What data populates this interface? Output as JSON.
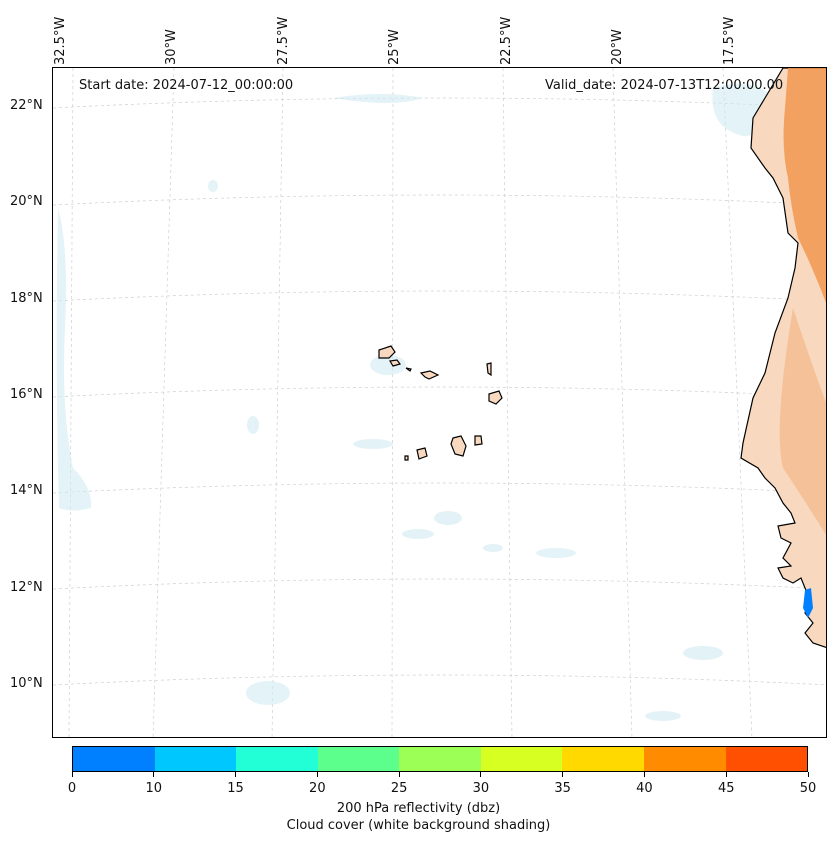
{
  "map": {
    "start_label": "Start date: 2024-07-12_00:00:00",
    "valid_label": "Valid_date: 2024-07-13T12:00:00.00",
    "lon_labels": [
      "32.5°W",
      "30°W",
      "27.5°W",
      "25°W",
      "22.5°W",
      "20°W",
      "17.5°W"
    ],
    "lat_labels": [
      "22°N",
      "20°N",
      "18°N",
      "16°N",
      "14°N",
      "12°N",
      "10°N"
    ],
    "land_color": "#f8d9bf",
    "reflectivity_color": "#f29650",
    "cloud_color": "#cde9f1"
  },
  "colorbar": {
    "colors": [
      "#0080ff",
      "#00c8ff",
      "#22ffd6",
      "#5cff8c",
      "#9cff55",
      "#d8ff22",
      "#ffd900",
      "#ff8c00",
      "#ff4f00"
    ],
    "ticks": [
      "0",
      "10",
      "15",
      "20",
      "25",
      "30",
      "35",
      "40",
      "45",
      "50"
    ],
    "caption_line1": "200 hPa reflectivity (dbz)",
    "caption_line2": "Cloud cover (white background shading)"
  }
}
